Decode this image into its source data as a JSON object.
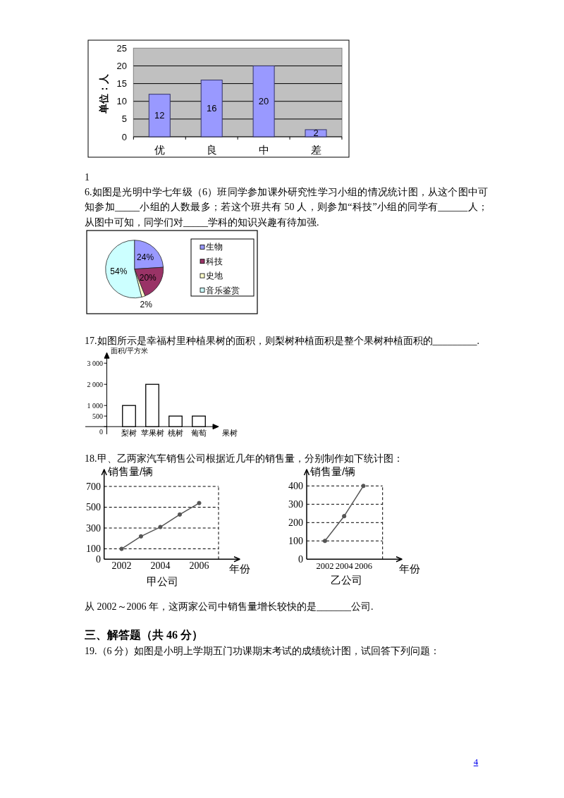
{
  "chart_data": [
    {
      "type": "bar",
      "categories": [
        "优",
        "良",
        "中",
        "差"
      ],
      "values": [
        12,
        16,
        20,
        2
      ],
      "color": "#9999ff",
      "ylabel": "单位：人",
      "ylim": [
        0,
        25
      ],
      "yticks": [
        0,
        5,
        10,
        15,
        20,
        25
      ],
      "grid": "y",
      "data_labels": true,
      "annotations": [
        "1"
      ]
    },
    {
      "type": "pie",
      "title": "6.如图是光明中学七年级（6）班同学参加课外研究性学习小组的情况统计图，从这个图中可知参加_____小组的人数最多；若这个班共有 50 人，则参加“科技”小组的同学有______人；从图中可知，同学们对_____学科的知识兴趣有待加强.",
      "categories": [
        "生物",
        "科技",
        "史地",
        "音乐鉴赏"
      ],
      "values": [
        24,
        20,
        2,
        54
      ],
      "colors": [
        "#9999ff",
        "#993366",
        "#ffffcc",
        "#ccffff"
      ],
      "value_labels": [
        "24%",
        "20%",
        "2%",
        "54%"
      ],
      "legend": "right"
    },
    {
      "type": "bar",
      "title": "17.如图所示是幸福村里种植果树的面积，则梨树种植面积是整个果树种植面积的_________.",
      "categories": [
        "梨树",
        "苹果树",
        "桃树",
        "葡萄"
      ],
      "values": [
        1000,
        2000,
        500,
        500
      ],
      "color": "#ffffff",
      "ylabel": "面积/平方米",
      "xlabel": "果树",
      "ylim": [
        0,
        3500
      ],
      "yticks": [
        0,
        500,
        {
          "value": 1000,
          "label": "1 000"
        },
        {
          "value": 2000,
          "label": "2 000"
        },
        {
          "value": 3000,
          "label": "3 000"
        }
      ]
    },
    {
      "type": "line",
      "title": "18.甲、乙两家汽车销售公司根据近几年的销售量，分别制作如下统计图：",
      "x": [
        2002,
        2003,
        2004,
        2005,
        2006
      ],
      "values": [
        100,
        220,
        310,
        430,
        540
      ],
      "color": "#555555",
      "marker": "circle",
      "line_style": "solid",
      "xlim": [
        2001.1,
        2007
      ],
      "ylim": [
        0,
        700
      ],
      "xticks": [
        2002,
        2004,
        2006
      ],
      "yticks": [
        0,
        100,
        300,
        500,
        700
      ],
      "grid": "y",
      "xlabel": "年份",
      "ylabel": "销售量/辆",
      "annotations": [
        "甲公司"
      ]
    },
    {
      "type": "line",
      "x": [
        2002,
        2004,
        2006
      ],
      "values": [
        100,
        235,
        400
      ],
      "color": "#555555",
      "marker": "circle",
      "line_style": "solid",
      "xlim": [
        2000.1,
        2008
      ],
      "ylim": [
        0,
        400
      ],
      "xticks": [
        2002,
        2004,
        2006
      ],
      "yticks": [
        0,
        100,
        200,
        300,
        400
      ],
      "grid": "y",
      "xlabel": "年份",
      "ylabel": "销售量/辆",
      "annotations": [
        "乙公司",
        "从 2002～2006 年，这两家公司中销售量增长较快的是_______公司.",
        "三、解答题（共 46 分）",
        "19.（6 分）如图是小明上学期五门功课期末考试的成绩统计图，试回答下列问题：",
        "4"
      ]
    }
  ]
}
